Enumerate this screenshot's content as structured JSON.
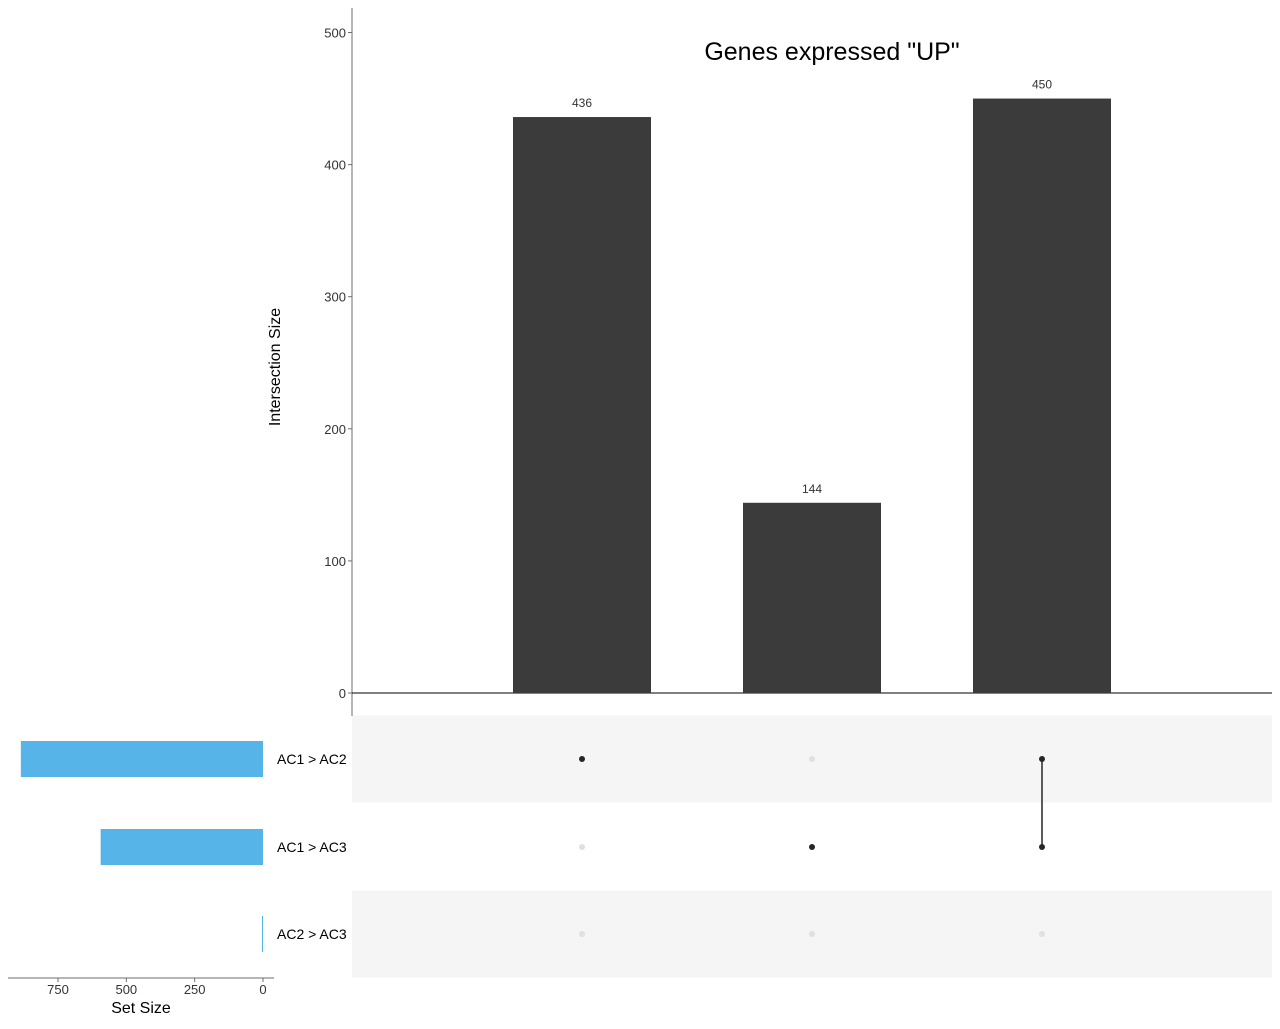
{
  "chart_data": {
    "type": "upset",
    "title": "Genes expressed \"UP\"",
    "intersection_axis": {
      "label": "Intersection Size",
      "ylim": [
        0,
        520
      ],
      "ticks": [
        0,
        100,
        200,
        300,
        400,
        500
      ]
    },
    "set_size_axis": {
      "label": "Set Size",
      "xlim": [
        0,
        920
      ],
      "ticks": [
        750,
        500,
        250,
        0
      ]
    },
    "sets": [
      {
        "name": "AC1 > AC2",
        "size": 886
      },
      {
        "name": "AC1 > AC3",
        "size": 594
      },
      {
        "name": "AC2 > AC3",
        "size": 0
      }
    ],
    "intersections": [
      {
        "size": 436,
        "members": [
          "AC1 > AC2"
        ]
      },
      {
        "size": 144,
        "members": [
          "AC1 > AC3"
        ]
      },
      {
        "size": 450,
        "members": [
          "AC1 > AC2",
          "AC1 > AC3"
        ]
      }
    ],
    "colors": {
      "bars": "#3b3b3b",
      "set_bars": "#56b4e9",
      "dot_active": "#262626",
      "dot_inactive": "#e0e0e0",
      "stripe": "#f5f5f5",
      "axis": "#6e6e6e",
      "text": "#333333"
    }
  }
}
